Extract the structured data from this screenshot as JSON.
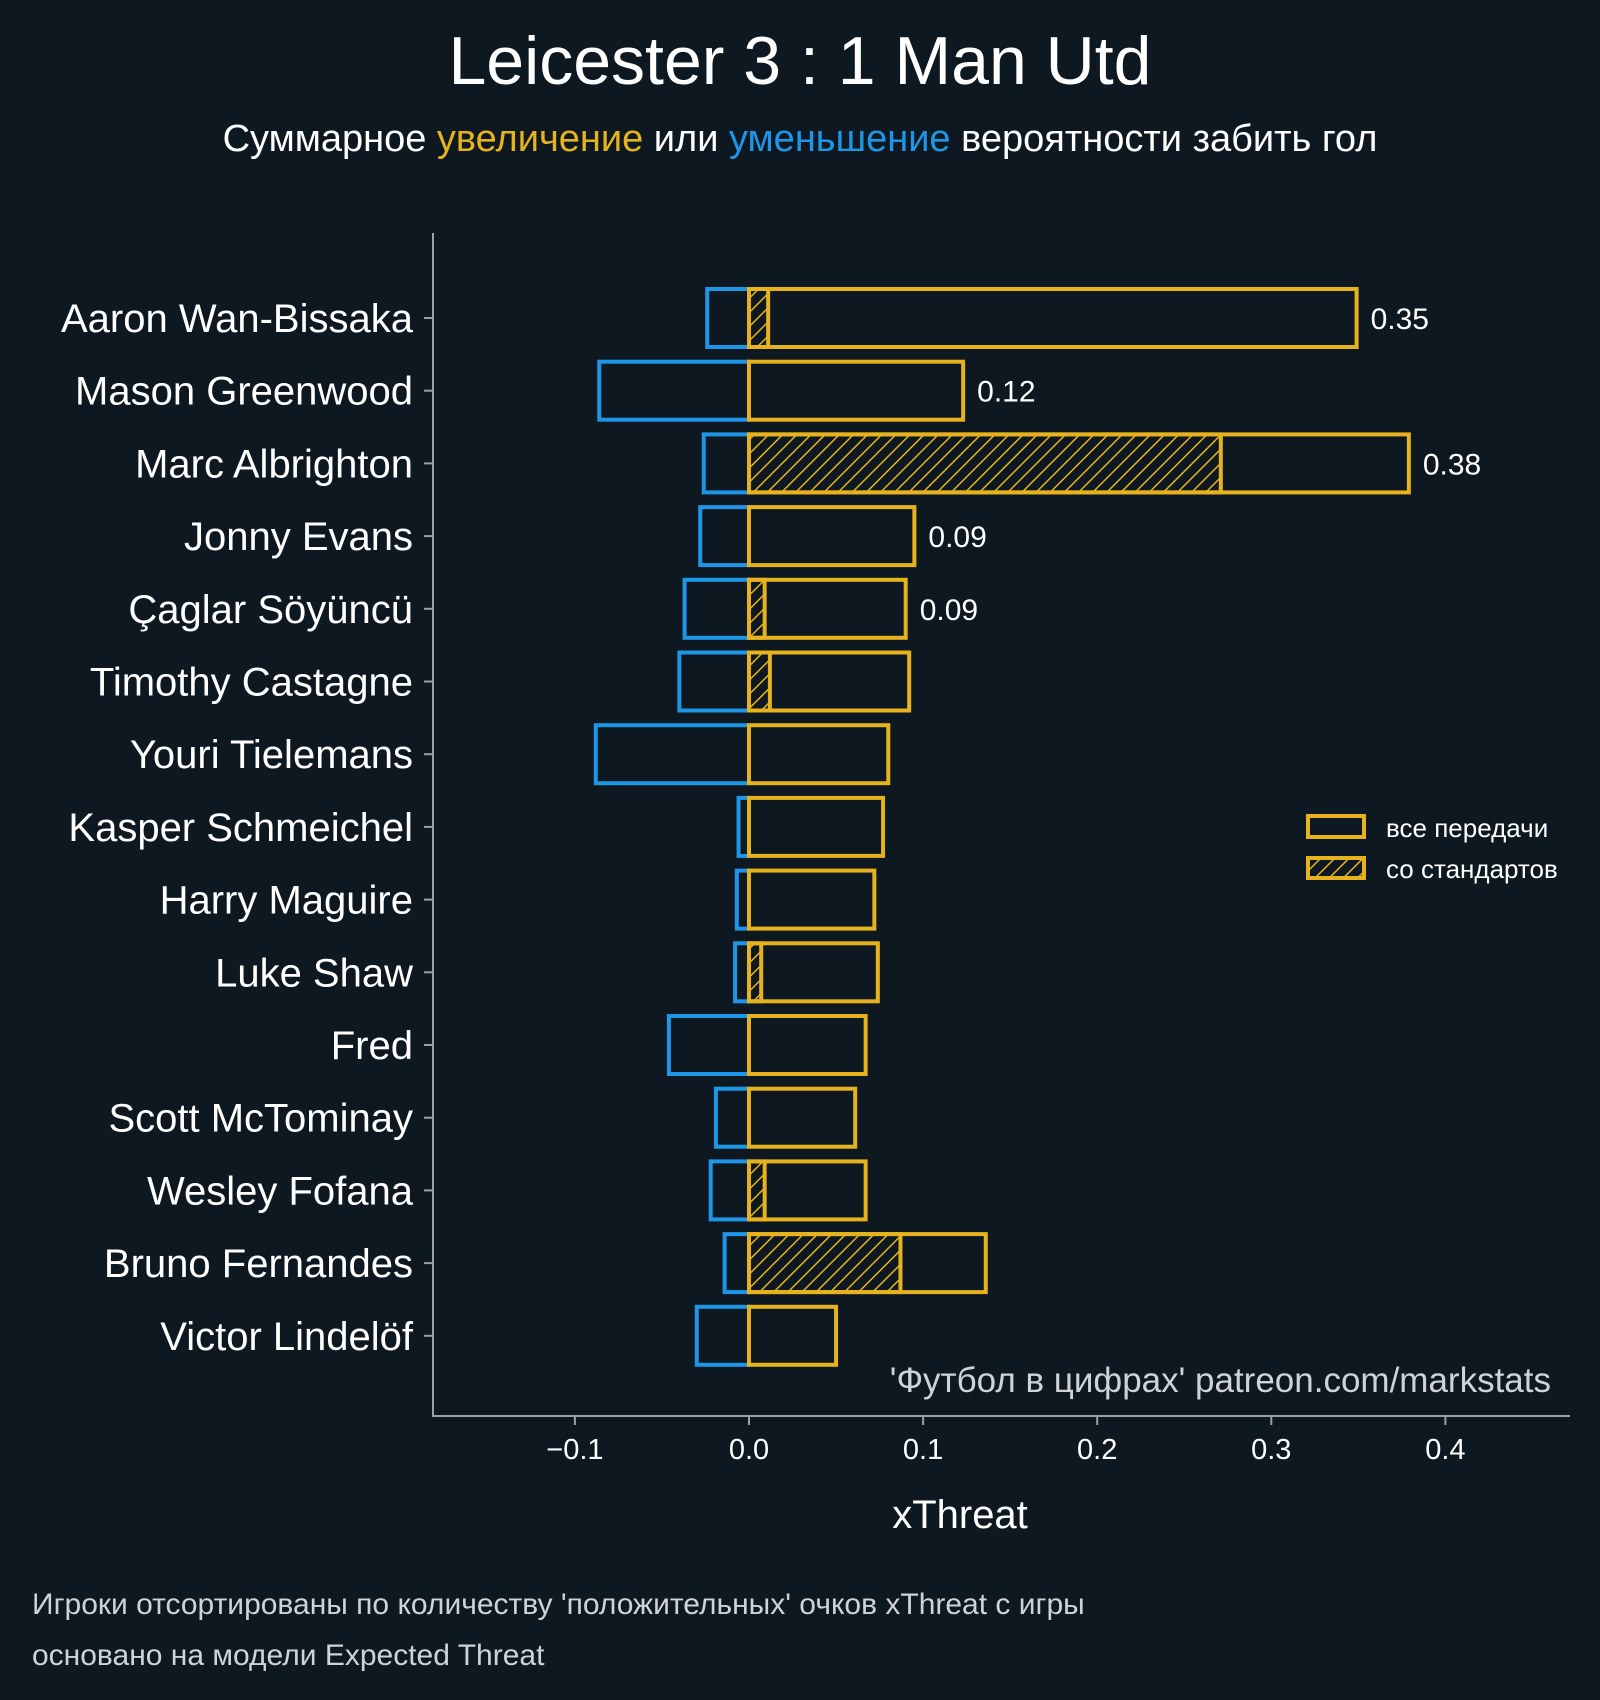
{
  "chart_data": {
    "type": "bar",
    "title": "Leicester 3 : 1 Man Utd",
    "subtitle": {
      "pre": "Суммарное ",
      "up": "увеличение",
      "mid": " или ",
      "down": "уменьшение",
      "post": " вероятности забить гол"
    },
    "xlabel": "xThreat",
    "ylabel": "",
    "xlim": [
      -0.18,
      0.48
    ],
    "xticks": [
      -0.1,
      0.0,
      0.1,
      0.2,
      0.3,
      0.4
    ],
    "xtick_labels": [
      "−0.1",
      "0.0",
      "0.1",
      "0.2",
      "0.3",
      "0.4"
    ],
    "categories": [
      "Aaron Wan-Bissaka",
      "Mason Greenwood",
      "Marc Albrighton",
      "Jonny Evans",
      "Çaglar Söyüncü",
      "Timothy Castagne",
      "Youri Tielemans",
      "Kasper Schmeichel",
      "Harry Maguire",
      "Luke Shaw",
      "Fred",
      "Scott McTominay",
      "Wesley Fofana",
      "Bruno Fernandes",
      "Victor Lindelöf"
    ],
    "series": [
      {
        "name": "все передачи",
        "values": [
          0.349,
          0.123,
          0.379,
          0.095,
          0.09,
          0.092,
          0.08,
          0.077,
          0.072,
          0.074,
          0.067,
          0.061,
          0.067,
          0.136,
          0.05
        ]
      },
      {
        "name": "со стандартов",
        "values": [
          0.011,
          0,
          0.271,
          0,
          0.009,
          0.012,
          0,
          0,
          0,
          0.007,
          0,
          0,
          0.009,
          0.087,
          0
        ]
      },
      {
        "name": "negative",
        "values": [
          -0.024,
          -0.086,
          -0.026,
          -0.028,
          -0.037,
          -0.04,
          -0.088,
          -0.006,
          -0.007,
          -0.008,
          -0.046,
          -0.019,
          -0.022,
          -0.014,
          -0.03
        ]
      }
    ],
    "value_labels": [
      "0.35",
      "0.12",
      "0.38",
      "0.09",
      "0.09",
      "",
      "",
      "",
      "",
      "",
      "",
      "",
      "",
      "",
      ""
    ],
    "legend": {
      "position": "right",
      "items": [
        "все передачи",
        "со стандартов"
      ]
    },
    "watermark": "'Футбол в цифрах' patreon.com/markstats",
    "colors": {
      "positive": "#e6b31e",
      "negative": "#1e96e8",
      "background": "#0e1821",
      "axis": "#9aa0a6"
    }
  },
  "footnotes": [
    "Игроки отсортированы по количеству 'положительных' очков xThreat с игры",
    "основано на модели Expected Threat"
  ]
}
